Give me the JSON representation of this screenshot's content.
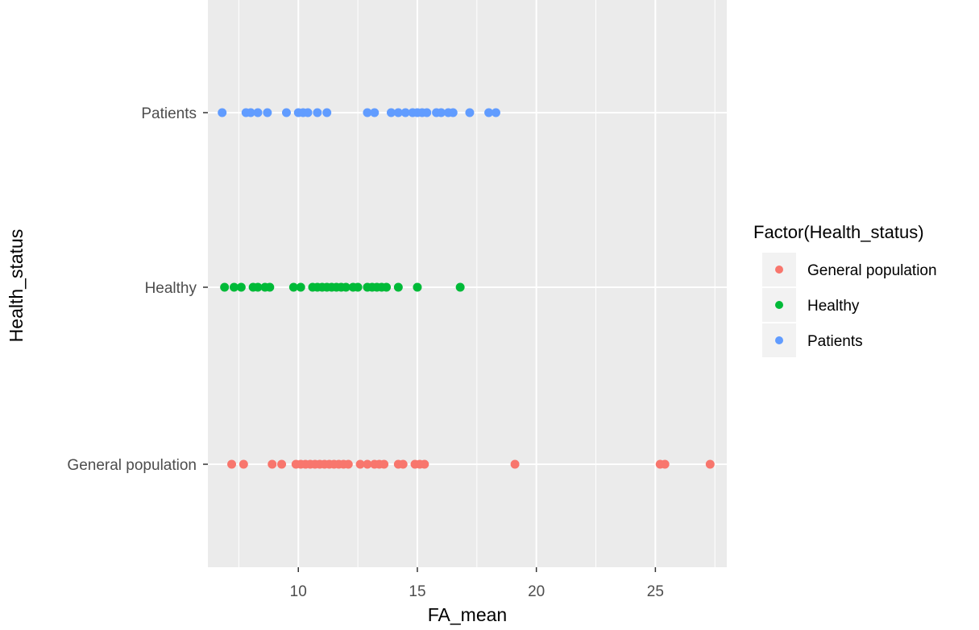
{
  "chart_data": {
    "type": "scatter",
    "title": "",
    "xlabel": "FA_mean",
    "ylabel": "Health_status",
    "xlim": [
      6.2,
      28.0
    ],
    "x_ticks": [
      10,
      15,
      20,
      25
    ],
    "x_tick_labels": [
      "10",
      "15",
      "20",
      "25"
    ],
    "categories": [
      "General population",
      "Healthy",
      "Patients"
    ],
    "grid": true,
    "legend": {
      "title": "Factor(Health_status)",
      "position": "right"
    },
    "series": [
      {
        "name": "General population",
        "category": "General population",
        "color": "#F8766D",
        "x": [
          7.2,
          7.7,
          8.9,
          9.3,
          9.9,
          10.1,
          10.3,
          10.5,
          10.7,
          10.9,
          11.1,
          11.3,
          11.5,
          11.7,
          11.9,
          12.1,
          12.6,
          12.9,
          13.2,
          13.4,
          13.6,
          14.2,
          14.4,
          14.9,
          15.1,
          15.3,
          19.1,
          25.2,
          25.4,
          27.3
        ]
      },
      {
        "name": "Healthy",
        "category": "Healthy",
        "color": "#00BA38",
        "x": [
          6.9,
          7.3,
          7.6,
          8.1,
          8.3,
          8.6,
          8.8,
          9.8,
          10.1,
          10.6,
          10.8,
          11.0,
          11.2,
          11.4,
          11.6,
          11.8,
          12.0,
          12.3,
          12.5,
          12.9,
          13.1,
          13.3,
          13.5,
          13.7,
          14.2,
          15.0,
          16.8
        ]
      },
      {
        "name": "Patients",
        "category": "Patients",
        "color": "#619CFF",
        "x": [
          6.8,
          7.8,
          8.0,
          8.3,
          8.7,
          9.5,
          10.0,
          10.2,
          10.4,
          10.8,
          11.2,
          12.9,
          13.2,
          13.9,
          14.2,
          14.5,
          14.8,
          15.0,
          15.2,
          15.4,
          15.8,
          16.0,
          16.3,
          16.5,
          17.2,
          18.0,
          18.3
        ]
      }
    ]
  }
}
